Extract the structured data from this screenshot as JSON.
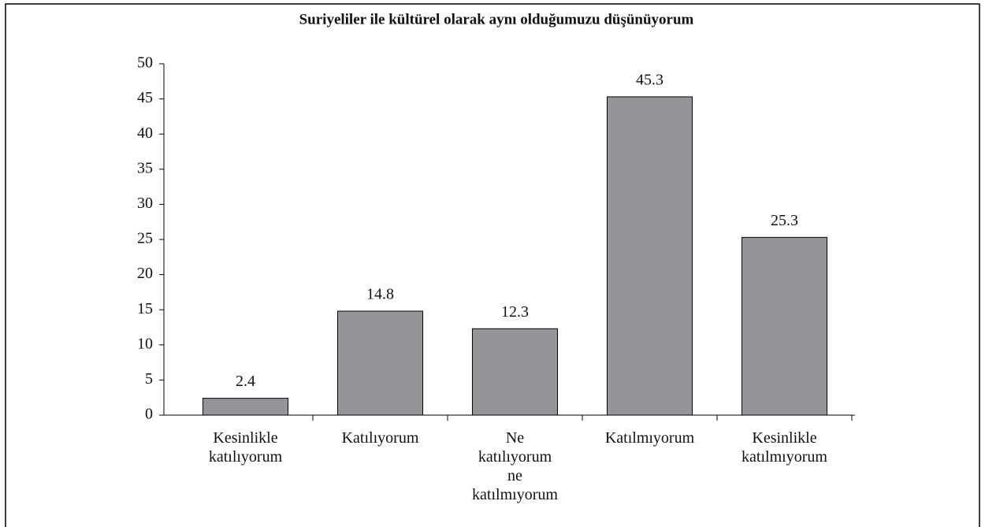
{
  "chart_data": {
    "type": "bar",
    "title": "Suriyeliler ile kültürel olarak aynı olduğumuzu düşünüyorum",
    "categories": [
      "Kesinlikle katılıyorum",
      "Katılıyorum",
      "Ne katılıyorum ne katılmıyorum",
      "Katılmıyorum",
      "Kesinlikle katılmıyorum"
    ],
    "values": [
      2.4,
      14.8,
      12.3,
      45.3,
      25.3
    ],
    "color": "#939598",
    "ylim": [
      0,
      50
    ],
    "yticks": [
      0,
      5,
      10,
      15,
      20,
      25,
      30,
      35,
      40,
      45,
      50
    ],
    "grid": false
  }
}
